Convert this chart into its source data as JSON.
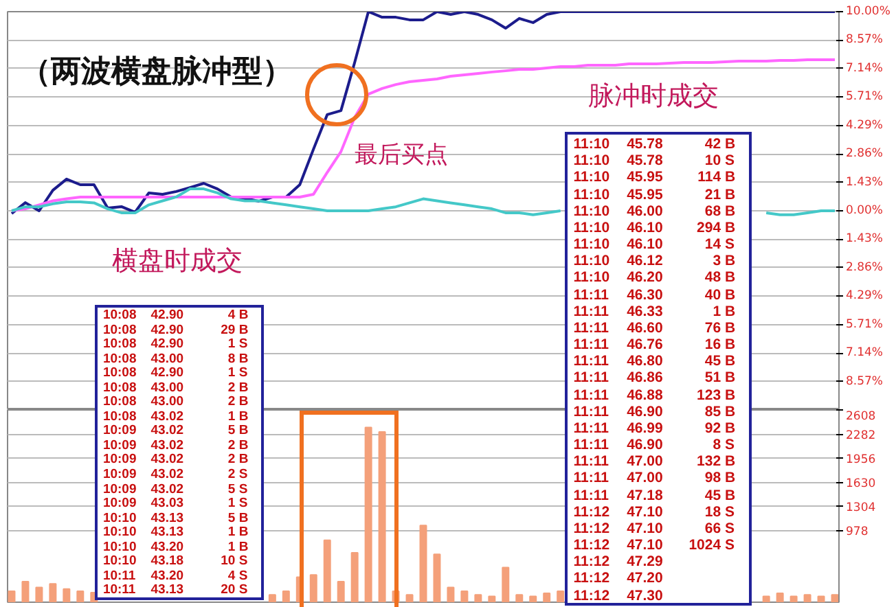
{
  "chart_data": [
    {
      "type": "line",
      "categories": [
        null,
        null,
        null,
        null,
        null,
        null,
        null,
        null,
        null,
        null,
        null,
        null,
        null,
        null,
        null,
        null,
        null,
        null,
        null,
        null,
        null,
        null,
        null,
        null,
        null,
        null,
        null,
        null,
        null,
        null,
        null,
        null,
        null,
        null,
        null,
        null,
        null,
        null,
        null,
        null,
        null,
        null,
        null,
        null,
        null,
        null,
        null,
        null,
        null,
        null,
        null,
        null,
        null,
        null,
        null,
        null,
        null,
        null,
        null,
        null,
        null
      ],
      "series": [
        {
          "type": "line",
          "color": "#1c1c8c",
          "values": [
            -0.14,
            0.41,
            0,
            1.03,
            1.59,
            1.31,
            1.31,
            0.14,
            0.21,
            -0.07,
            0.9,
            0.83,
            0.97,
            1.17,
            1.38,
            1.1,
            0.69,
            0.62,
            0.48,
            0.69,
            0.69,
            1.31,
            3.1,
            4.83,
            5.03,
            7.45,
            10,
            9.72,
            9.72,
            9.59,
            9.59,
            10,
            9.86,
            10,
            9.86,
            9.59,
            9.17,
            9.66,
            9.45,
            9.86,
            10,
            10,
            10,
            10,
            10,
            10,
            10,
            10,
            10,
            10,
            10,
            10,
            10,
            10,
            10,
            10,
            10,
            10,
            10,
            10,
            10
          ]
        },
        {
          "type": "line",
          "color": "#ff66ff",
          "values": [
            0,
            0.1,
            0.3,
            0.5,
            0.6,
            0.69,
            0.69,
            0.69,
            0.69,
            0.69,
            0.69,
            0.69,
            0.69,
            0.69,
            0.69,
            0.69,
            0.69,
            0.69,
            0.69,
            0.69,
            0.69,
            0.69,
            0.83,
            1.93,
            2.97,
            4.69,
            5.86,
            6.14,
            6.34,
            6.48,
            6.55,
            6.62,
            6.76,
            6.83,
            6.9,
            6.97,
            7.03,
            7.1,
            7.1,
            7.17,
            7.24,
            7.24,
            7.31,
            7.31,
            7.31,
            7.38,
            7.38,
            7.38,
            7.41,
            7.45,
            7.45,
            7.45,
            7.48,
            7.52,
            7.52,
            7.52,
            7.55,
            7.55,
            7.59,
            7.59,
            7.59
          ]
        },
        {
          "type": "line",
          "color": "#44c8c8",
          "values": [
            0,
            0.2,
            0.2,
            0.35,
            0.45,
            0.45,
            0.4,
            0.1,
            -0.1,
            -0.1,
            0.3,
            0.5,
            0.7,
            1.1,
            1.1,
            0.9,
            0.6,
            0.5,
            0.5,
            0.4,
            0.3,
            0.2,
            0.1,
            0,
            0,
            0,
            0,
            0.1,
            0.2,
            0.4,
            0.6,
            0.5,
            0.4,
            0.3,
            0.2,
            0.1,
            -0.1,
            -0.1,
            -0.2,
            -0.1,
            0,
            null,
            null,
            null,
            null,
            null,
            null,
            null,
            null,
            null,
            null,
            null,
            null,
            null,
            null,
            -0.1,
            -0.2,
            -0.2,
            -0.1,
            0,
            0
          ]
        }
      ],
      "ylim": [
        -10,
        10
      ],
      "yticks": [
        {
          "value": -8.57,
          "label": "8.57%"
        },
        {
          "value": -7.14,
          "label": "7.14%"
        },
        {
          "value": -5.71,
          "label": "5.71%"
        },
        {
          "value": -4.29,
          "label": "4.29%"
        },
        {
          "value": -2.86,
          "label": "2.86%"
        },
        {
          "value": -1.43,
          "label": "1.43%"
        },
        {
          "value": 0,
          "label": "0.00%"
        },
        {
          "value": 1.43,
          "label": "1.43%"
        },
        {
          "value": 2.86,
          "label": "2.86%"
        },
        {
          "value": 4.29,
          "label": "4.29%"
        },
        {
          "value": 5.71,
          "label": "5.71%"
        },
        {
          "value": 7.14,
          "label": "7.14%"
        },
        {
          "value": 8.57,
          "label": "8.57%"
        },
        {
          "value": 10,
          "label": "10.00%"
        }
      ],
      "grid": "y",
      "annotations": [
        "（两波横盘脉冲型）",
        "最后买点",
        "脉冲时成交",
        "横盘时成交",
        "10:08 42.90 4 B\n10:08 42.90 29 B\n10:08 42.90 1 S\n10:08 43.00 8 B\n10:08 42.90 1 S\n10:08 43.00 2 B\n10:08 43.00 2 B\n10:08 43.02 1 B\n10:09 43.02 5 B\n10:09 43.02 2 B\n10:09 43.02 2 B\n10:09 43.02 2 S\n10:09 43.02 5 S\n10:09 43.03 1 S\n10:10 43.13 5 B\n10:10 43.13 1 B\n10:10 43.20 1 B\n10:10 43.18 10 S\n10:11 43.20 4 S\n10:11 43.13 20 S",
        "11:10 45.78 42 B\n11:10 45.78 10 S\n11:10 45.95 114 B\n11:10 45.95 21 B\n11:10 46.00 68 B\n11:10 46.10 294 B\n11:10 46.10 14 S\n11:10 46.12 3 B\n11:10 46.20 48 B\n11:11 46.30 40 B\n11:11 46.33 1 B\n11:11 46.60 76 B\n11:11 46.76 16 B\n11:11 46.80 45 B\n11:11 46.86 51 B\n11:11 46.88 123 B\n11:11 46.90 85 B\n11:11 46.99 92 B\n11:11 46.90 8 S\n11:11 47.00 132 B\n11:11 47.00 98 B\n11:11 47.18 45 B\n11:12 47.10 18 S\n11:12 47.10 66 S\n11:12 47.10 1024 S\n11:12 47.29\n11:12 47.20\n11:12 47.30"
      ]
    },
    {
      "type": "bar",
      "categories": [
        null,
        null,
        null,
        null,
        null,
        null,
        null,
        null,
        null,
        null,
        null,
        null,
        null,
        null,
        null,
        null,
        null,
        null,
        null,
        null,
        null,
        null,
        null,
        null,
        null,
        null,
        null,
        null,
        null,
        null,
        null,
        null,
        null,
        null,
        null,
        null,
        null,
        null,
        null,
        null,
        null,
        null,
        null,
        null,
        null,
        null,
        null,
        null,
        null,
        null,
        null,
        null,
        null,
        null,
        null,
        null,
        null,
        null,
        null,
        null,
        null
      ],
      "color": "#f4a07a",
      "values": [
        150,
        280,
        200,
        250,
        180,
        150,
        130,
        null,
        null,
        null,
        null,
        null,
        null,
        null,
        null,
        null,
        null,
        null,
        null,
        100,
        150,
        340,
        370,
        840,
        280,
        670,
        2370,
        2310,
        150,
        100,
        1040,
        650,
        200,
        150,
        100,
        80,
        470,
        100,
        80,
        120,
        150,
        null,
        null,
        null,
        null,
        null,
        null,
        null,
        null,
        null,
        null,
        null,
        null,
        null,
        null,
        80,
        120,
        80,
        100,
        80,
        100
      ],
      "ylim": [
        0,
        2608
      ],
      "yticks": [
        978,
        1304,
        1630,
        1956,
        2282,
        2608
      ],
      "grid": "y"
    }
  ]
}
